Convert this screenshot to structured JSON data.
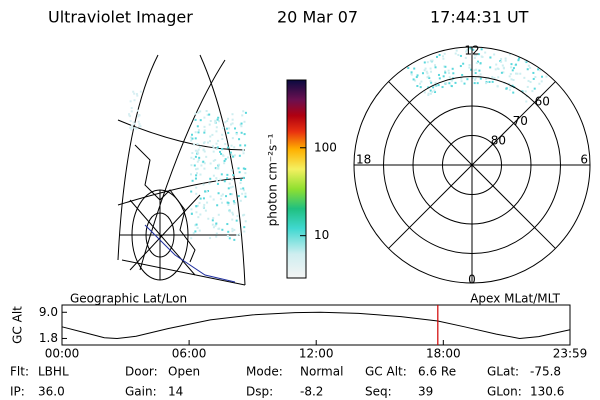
{
  "header": {
    "title": "Ultraviolet Imager",
    "date": "20 Mar 07",
    "time": "17:44:31 UT"
  },
  "colorbar": {
    "label": "photon cm⁻²s⁻¹",
    "log": true,
    "lim": [
      3.3,
      590
    ],
    "ticks": [
      10,
      100
    ]
  },
  "polar": {
    "mlt_labels": [
      "12",
      "18",
      "6",
      "0"
    ],
    "lat_lim": [
      90,
      50
    ],
    "lat_ticks": [
      80,
      70,
      60
    ]
  },
  "timeline": {
    "left_label": "Geographic Lat/Lon",
    "right_label": "Apex MLat/MLT",
    "ylabel": "GC Alt",
    "ylim": [
      0,
      11
    ],
    "yticks": [
      {
        "value": 9,
        "label": "9.0"
      },
      {
        "value": 1.8,
        "label": "1.8"
      }
    ],
    "xlim": [
      0,
      23.98
    ],
    "xticks": [
      {
        "value": 0,
        "label": "00:00"
      },
      {
        "value": 6,
        "label": "06:00"
      },
      {
        "value": 12,
        "label": "12:00"
      },
      {
        "value": 18,
        "label": "18:00"
      },
      {
        "value": 23.98,
        "label": "23:59"
      }
    ],
    "x": [
      0,
      1,
      2,
      2.6,
      3.5,
      5,
      7,
      9,
      11,
      12.2,
      14,
      16,
      17.74,
      19,
      20.5,
      21.6,
      22.5,
      23.98
    ],
    "values": [
      5.0,
      3.5,
      2.0,
      1.8,
      2.4,
      4.5,
      6.9,
      8.3,
      8.9,
      9.0,
      8.7,
      7.8,
      6.6,
      5.0,
      3.0,
      1.8,
      2.3,
      4.2
    ],
    "marker": 17.74,
    "marker_color": "#d00000"
  },
  "info": [
    [
      {
        "label": "Flt:",
        "value": "LBHL"
      },
      {
        "label": "Door:",
        "value": "Open"
      },
      {
        "label": "Mode:",
        "value": "Normal"
      },
      {
        "label": "GC Alt:",
        "value": "6.6 Re"
      },
      {
        "label": "GLat:",
        "value": "-75.8"
      }
    ],
    [
      {
        "label": "IP:",
        "value": "36.0"
      },
      {
        "label": "Gain:",
        "value": "14"
      },
      {
        "label": "Dsp:",
        "value": "-8.2"
      },
      {
        "label": "Seq:",
        "value": "39"
      },
      {
        "label": "GLon:",
        "value": "130.6"
      }
    ]
  ]
}
